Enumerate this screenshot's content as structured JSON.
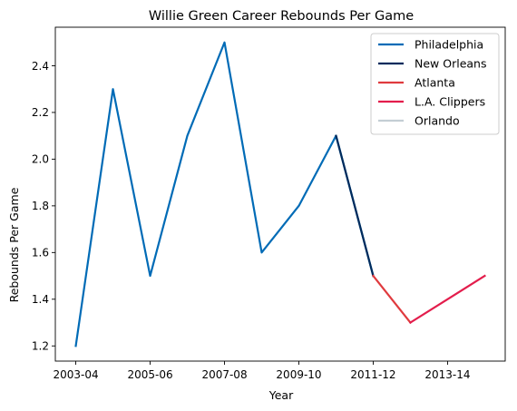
{
  "chart_data": {
    "type": "line",
    "title": "Willie Green Career Rebounds Per Game",
    "xlabel": "Year",
    "ylabel": "Rebounds Per Game",
    "x_categories": [
      "2003-04",
      "2004-05",
      "2005-06",
      "2006-07",
      "2007-08",
      "2008-09",
      "2009-10",
      "2010-11",
      "2011-12",
      "2012-13",
      "2013-14",
      "2014-15"
    ],
    "x_ticks": [
      "2003-04",
      "2005-06",
      "2007-08",
      "2009-10",
      "2011-12",
      "2013-14"
    ],
    "y_ticks": [
      "1.2",
      "1.4",
      "1.6",
      "1.8",
      "2.0",
      "2.2",
      "2.4"
    ],
    "ylim": [
      1.135,
      2.565
    ],
    "grid": false,
    "legend_position": "upper-right",
    "series": [
      {
        "name": "Philadelphia",
        "color": "#006bb6",
        "x": [
          "2003-04",
          "2004-05",
          "2005-06",
          "2006-07",
          "2007-08",
          "2008-09",
          "2009-10",
          "2010-11",
          "2011-12"
        ],
        "y": [
          1.2,
          2.3,
          1.5,
          2.1,
          2.5,
          1.6,
          1.8,
          2.1,
          1.5
        ]
      },
      {
        "name": "New Orleans",
        "color": "#002b5c",
        "x": [
          "2010-11",
          "2011-12"
        ],
        "y": [
          2.1,
          1.5
        ]
      },
      {
        "name": "Atlanta",
        "color": "#e03a3e",
        "x": [
          "2011-12",
          "2012-13"
        ],
        "y": [
          1.5,
          1.3
        ]
      },
      {
        "name": "L.A. Clippers",
        "color": "#e31d4c",
        "x": [
          "2012-13",
          "2013-14",
          "2014-15"
        ],
        "y": [
          1.3,
          1.4,
          1.5
        ]
      },
      {
        "name": "Orlando",
        "color": "#c4ced4",
        "x": [],
        "y": []
      }
    ]
  }
}
